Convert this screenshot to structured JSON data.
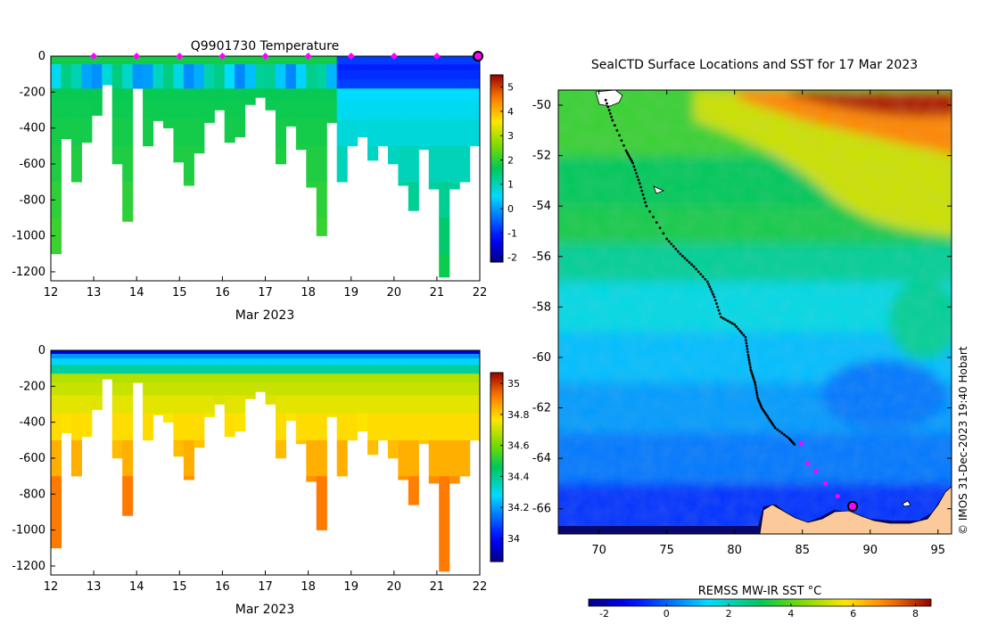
{
  "chart_data": [
    {
      "type": "heatmap",
      "title": "Q9901730  Temperature",
      "xlabel": "Mar 2023",
      "ylabel": "",
      "xlim": [
        12,
        22
      ],
      "ylim": [
        -1250,
        0
      ],
      "xticks": [
        "12",
        "13",
        "14",
        "15",
        "16",
        "17",
        "18",
        "19",
        "20",
        "21",
        "22"
      ],
      "yticks": [
        "0",
        "-200",
        "-400",
        "-600",
        "-800",
        "-1000",
        "-1200"
      ],
      "colorbar_ticks": [
        "5",
        "4",
        "3",
        "2",
        "1",
        "0",
        "-1",
        "-2"
      ],
      "colorbar_range": [
        -2.2,
        5.5
      ],
      "marker_days": [
        13,
        14,
        15,
        16,
        17,
        18,
        19,
        20,
        21
      ],
      "profile_depths": [
        1100,
        460,
        700,
        480,
        330,
        160,
        600,
        920,
        180,
        500,
        360,
        400,
        590,
        720,
        540,
        370,
        300,
        480,
        450,
        270,
        230,
        300,
        600,
        390,
        520,
        730,
        1000,
        370,
        700,
        500,
        450,
        580,
        500,
        600,
        720,
        860,
        520,
        740,
        1230,
        740,
        700,
        500
      ]
    },
    {
      "type": "heatmap",
      "title": "",
      "xlabel": "Mar 2023",
      "ylabel": "",
      "xlim": [
        12,
        22
      ],
      "ylim": [
        -1250,
        0
      ],
      "xticks": [
        "12",
        "13",
        "14",
        "15",
        "16",
        "17",
        "18",
        "19",
        "20",
        "21",
        "22"
      ],
      "yticks": [
        "0",
        "-200",
        "-400",
        "-600",
        "-800",
        "-1000",
        "-1200"
      ],
      "colorbar_ticks": [
        "35",
        "34.8",
        "34.6",
        "34.4",
        "34.2",
        "34"
      ],
      "colorbar_range": [
        33.85,
        35.07
      ]
    },
    {
      "type": "heatmap",
      "title": "SealCTD Surface Locations and SST for 17 Mar 2023",
      "xlabel": "",
      "ylabel": "",
      "xlim": [
        67,
        96
      ],
      "ylim": [
        -67,
        -49.4
      ],
      "xticks": [
        "70",
        "75",
        "80",
        "85",
        "90",
        "95"
      ],
      "yticks": [
        "-50",
        "-52",
        "-54",
        "-56",
        "-58",
        "-60",
        "-62",
        "-64",
        "-66"
      ],
      "colorbar_label": "REMSS MW-IR SST °C",
      "colorbar_ticks": [
        "-2",
        "0",
        "2",
        "4",
        "6",
        "8"
      ],
      "colorbar_range": [
        -2.5,
        8.5
      ],
      "track": [
        [
          70.5,
          -49.8
        ],
        [
          71.0,
          -50.6
        ],
        [
          72.0,
          -51.8
        ],
        [
          72.5,
          -52.3
        ],
        [
          73.0,
          -53.1
        ],
        [
          73.5,
          -54.0
        ],
        [
          75.0,
          -55.3
        ],
        [
          76.0,
          -55.9
        ],
        [
          77.0,
          -56.4
        ],
        [
          78.0,
          -57.0
        ],
        [
          78.5,
          -57.6
        ],
        [
          79.0,
          -58.4
        ],
        [
          80.0,
          -58.7
        ],
        [
          80.8,
          -59.2
        ],
        [
          81.0,
          -59.9
        ],
        [
          81.2,
          -60.5
        ],
        [
          81.5,
          -61.0
        ],
        [
          81.7,
          -61.6
        ],
        [
          82.0,
          -62.0
        ],
        [
          82.5,
          -62.4
        ],
        [
          83.0,
          -62.8
        ],
        [
          84.0,
          -63.2
        ],
        [
          84.5,
          -63.5
        ]
      ],
      "recent_points": [
        [
          84.9,
          -63.4
        ],
        [
          85.4,
          -64.2
        ],
        [
          86.0,
          -64.5
        ],
        [
          86.7,
          -65.0
        ],
        [
          87.6,
          -65.5
        ]
      ],
      "current_position": [
        88.7,
        -65.9
      ],
      "credit": "© IMOS 31-Dec-2023 19:40 Hobart"
    }
  ]
}
